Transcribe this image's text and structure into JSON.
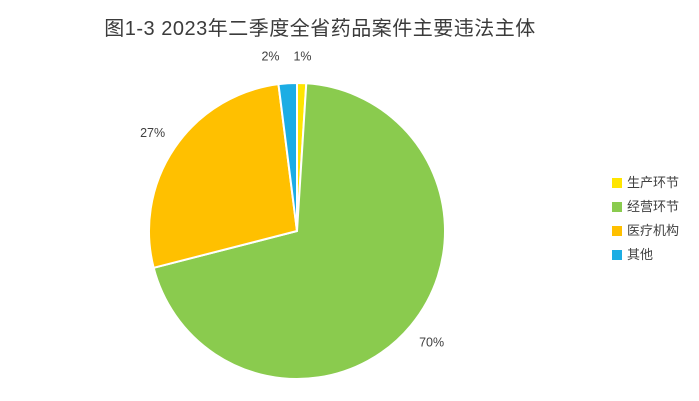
{
  "page": {
    "background": "#ffffff",
    "text_color": "#404040"
  },
  "chart_data": {
    "type": "pie",
    "title": "图1-3 2023年二季度全省药品案件主要违法主体",
    "legend_position": "right",
    "start_angle_deg": 0,
    "direction": "clockwise",
    "slice_border_color": "#ffffff",
    "label_color": "#404040",
    "segments": [
      {
        "label": "生产环节",
        "value": 1,
        "percent_label": "1%",
        "color": "#FFE500"
      },
      {
        "label": "经营环节",
        "value": 70,
        "percent_label": "70%",
        "color": "#8ACB4E"
      },
      {
        "label": "医疗机构",
        "value": 27,
        "percent_label": "27%",
        "color": "#FFC000"
      },
      {
        "label": "其他",
        "value": 2,
        "percent_label": "2%",
        "color": "#1CADE4"
      }
    ]
  }
}
